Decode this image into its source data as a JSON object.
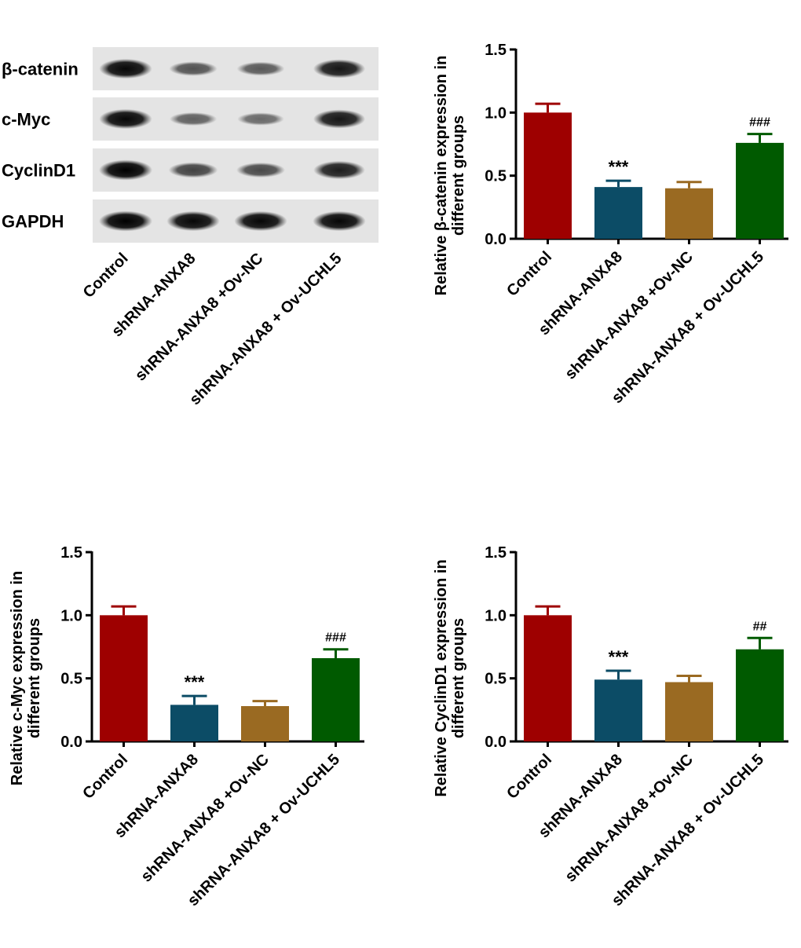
{
  "blot": {
    "lanes": [
      "Control",
      "shRNA-ANXA8",
      "shRNA-ANXA8 +Ov-NC",
      "shRNA-ANXA8 + Ov-UCHL5"
    ],
    "rows": [
      {
        "label": "β-catenin",
        "intensities": [
          0.95,
          0.45,
          0.4,
          0.85
        ]
      },
      {
        "label": "c-Myc",
        "intensities": [
          0.95,
          0.35,
          0.3,
          0.85
        ]
      },
      {
        "label": "CyclinD1",
        "intensities": [
          1.0,
          0.55,
          0.5,
          0.8
        ]
      },
      {
        "label": "GAPDH",
        "intensities": [
          1.0,
          0.95,
          0.95,
          0.95
        ]
      }
    ]
  },
  "colors": [
    "#9e0000",
    "#0c4c66",
    "#9a6a22",
    "#005a00"
  ],
  "chart_data": [
    {
      "type": "bar",
      "categories": [
        "Control",
        "shRNA-ANXA8",
        "shRNA-ANXA8 +Ov-NC",
        "shRNA-ANXA8 + Ov-UCHL5"
      ],
      "values": [
        1.0,
        0.41,
        0.4,
        0.76
      ],
      "errors": [
        0.07,
        0.05,
        0.05,
        0.07
      ],
      "annotations": [
        "",
        "***",
        "",
        "###"
      ],
      "ylabel_lines": [
        "Relative β-catenin expression in",
        "different groups"
      ],
      "ylim": [
        0,
        1.5
      ],
      "yticks": [
        "0.0",
        "0.5",
        "1.0",
        "1.5"
      ]
    },
    {
      "type": "bar",
      "categories": [
        "Control",
        "shRNA-ANXA8",
        "shRNA-ANXA8 +Ov-NC",
        "shRNA-ANXA8 + Ov-UCHL5"
      ],
      "values": [
        1.0,
        0.29,
        0.28,
        0.66
      ],
      "errors": [
        0.07,
        0.07,
        0.04,
        0.07
      ],
      "annotations": [
        "",
        "***",
        "",
        "###"
      ],
      "ylabel_lines": [
        "Relative c-Myc expression in",
        "different groups"
      ],
      "ylim": [
        0,
        1.5
      ],
      "yticks": [
        "0.0",
        "0.5",
        "1.0",
        "1.5"
      ]
    },
    {
      "type": "bar",
      "categories": [
        "Control",
        "shRNA-ANXA8",
        "shRNA-ANXA8 +Ov-NC",
        "shRNA-ANXA8 + Ov-UCHL5"
      ],
      "values": [
        1.0,
        0.49,
        0.47,
        0.73
      ],
      "errors": [
        0.07,
        0.07,
        0.05,
        0.09
      ],
      "annotations": [
        "",
        "***",
        "",
        "##"
      ],
      "ylabel_lines": [
        "Relative CyclinD1 expression in",
        "different groups"
      ],
      "ylim": [
        0,
        1.5
      ],
      "yticks": [
        "0.0",
        "0.5",
        "1.0",
        "1.5"
      ]
    }
  ]
}
